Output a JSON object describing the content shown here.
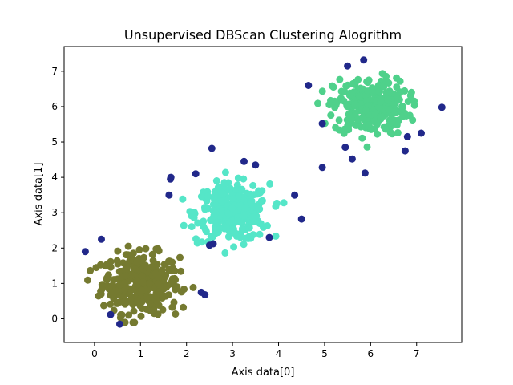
{
  "chart_data": {
    "type": "scatter",
    "title": "Unsupervised DBScan Clustering Alogrithm",
    "xlabel": "Axis data[0]",
    "ylabel": "Axis data[1]",
    "xlim": [
      -0.66,
      7.98
    ],
    "ylim": [
      -0.67,
      7.7
    ],
    "xticks": [
      "0",
      "1",
      "2",
      "3",
      "4",
      "5",
      "6",
      "7"
    ],
    "yticks": [
      "0",
      "1",
      "2",
      "3",
      "4",
      "5",
      "6",
      "7"
    ],
    "grid": false,
    "clusters": [
      {
        "color": "#757a30",
        "center": [
          1.0,
          1.0
        ],
        "spread": 0.42,
        "count": 320
      },
      {
        "color": "#55e6c8",
        "center": [
          3.0,
          3.0
        ],
        "spread": 0.4,
        "count": 290
      },
      {
        "color": "#4fd18b",
        "center": [
          6.0,
          6.0
        ],
        "spread": 0.4,
        "count": 300
      }
    ],
    "noise": {
      "color": "#21288a",
      "points": [
        [
          -0.2,
          1.9
        ],
        [
          0.15,
          2.25
        ],
        [
          0.35,
          0.12
        ],
        [
          0.55,
          -0.15
        ],
        [
          1.62,
          3.5
        ],
        [
          1.65,
          3.95
        ],
        [
          1.66,
          4.0
        ],
        [
          2.2,
          4.1
        ],
        [
          2.32,
          0.75
        ],
        [
          2.4,
          0.68
        ],
        [
          2.5,
          2.08
        ],
        [
          2.58,
          2.12
        ],
        [
          2.55,
          4.82
        ],
        [
          3.25,
          4.45
        ],
        [
          3.5,
          4.35
        ],
        [
          3.8,
          2.3
        ],
        [
          4.35,
          3.5
        ],
        [
          4.5,
          2.82
        ],
        [
          4.65,
          6.6
        ],
        [
          4.95,
          5.52
        ],
        [
          4.95,
          4.28
        ],
        [
          5.45,
          4.85
        ],
        [
          5.5,
          7.15
        ],
        [
          5.6,
          4.52
        ],
        [
          5.85,
          7.32
        ],
        [
          5.88,
          4.12
        ],
        [
          6.75,
          4.75
        ],
        [
          6.8,
          5.15
        ],
        [
          7.1,
          5.25
        ],
        [
          7.55,
          5.98
        ]
      ]
    }
  }
}
